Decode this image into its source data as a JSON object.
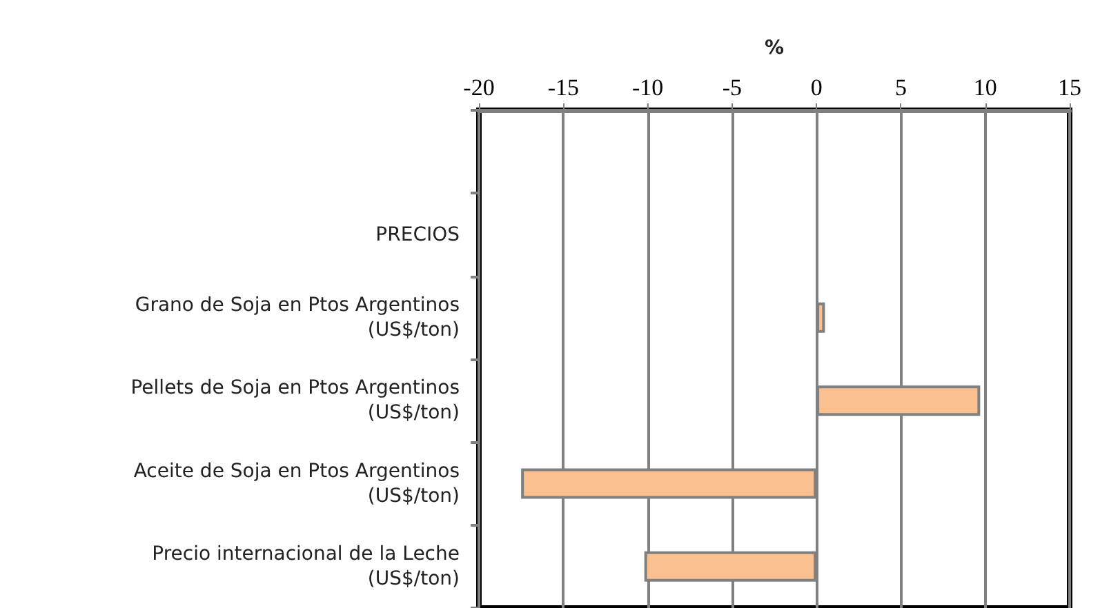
{
  "chart_data": {
    "type": "bar",
    "orientation": "horizontal",
    "xlabel": "%",
    "categories": [
      null,
      "PRECIOS",
      "Grano de Soja en Ptos Argentinos\n(US$/ton)",
      "Pellets de Soja en Ptos Argentinos\n(US$/ton)",
      "Aceite de Soja en Ptos Argentinos\n(US$/ton)",
      "Precio internacional de la Leche\n(US$/ton)"
    ],
    "values": [
      null,
      null,
      0.5,
      9.7,
      -17.5,
      -10.2
    ],
    "color": "#fac08f",
    "xlim": [
      -20,
      15
    ],
    "xticks": [
      -20,
      -15,
      -10,
      -5,
      0,
      5,
      10,
      15
    ],
    "grid": "x"
  }
}
